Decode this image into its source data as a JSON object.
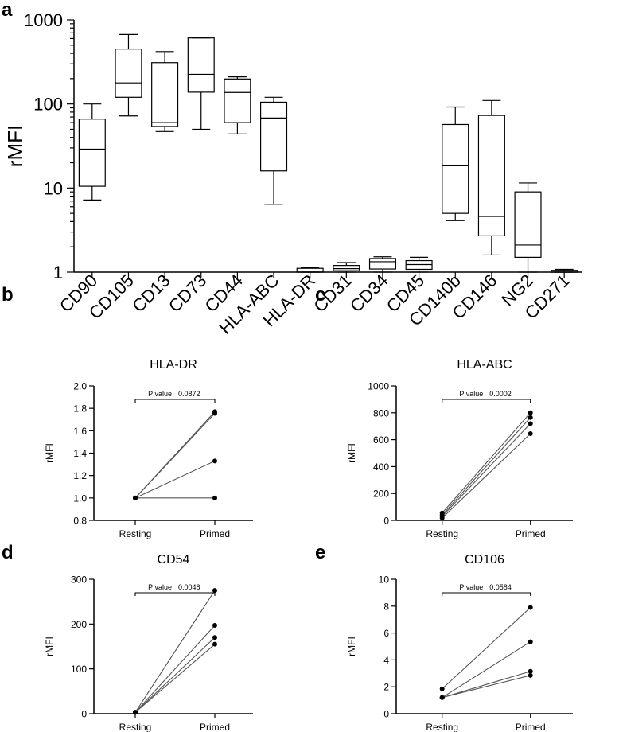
{
  "panel_letters": {
    "a": "a",
    "b": "b",
    "c": "c",
    "d": "d",
    "e": "e"
  },
  "chart_data": [
    {
      "id": "a",
      "type": "box",
      "title": "",
      "ylabel": "rMFI",
      "yscale": "log",
      "ylim": [
        1,
        1000
      ],
      "yticks": [
        1,
        10,
        100,
        1000
      ],
      "ytick_labels": [
        "1",
        "10",
        "100",
        "1000"
      ],
      "categories": [
        "CD90",
        "CD105",
        "CD13",
        "CD73",
        "CD44",
        "HLA-ABC",
        "HLA-DR",
        "CD31",
        "CD34",
        "CD45",
        "CD140b",
        "CD146",
        "NG2",
        "CD271"
      ],
      "boxes": [
        {
          "min": 7.2,
          "q1": 10.5,
          "median": 29,
          "q3": 66,
          "max": 100
        },
        {
          "min": 72,
          "q1": 120,
          "median": 178,
          "q3": 450,
          "max": 670
        },
        {
          "min": 47,
          "q1": 54,
          "median": 60,
          "q3": 310,
          "max": 420
        },
        {
          "min": 50,
          "q1": 138,
          "median": 225,
          "q3": 610,
          "max": 610
        },
        {
          "min": 44,
          "q1": 60,
          "median": 137,
          "q3": 198,
          "max": 210
        },
        {
          "min": 6.4,
          "q1": 16,
          "median": 68,
          "q3": 105,
          "max": 120
        },
        {
          "min": 1.0,
          "q1": 1.0,
          "median": 1.0,
          "q3": 1.11,
          "max": 1.13
        },
        {
          "min": 1.0,
          "q1": 1.04,
          "median": 1.1,
          "q3": 1.2,
          "max": 1.3
        },
        {
          "min": 1.0,
          "q1": 1.09,
          "median": 1.33,
          "q3": 1.45,
          "max": 1.52
        },
        {
          "min": 1.0,
          "q1": 1.08,
          "median": 1.23,
          "q3": 1.37,
          "max": 1.5
        },
        {
          "min": 4.1,
          "q1": 5.0,
          "median": 18.4,
          "q3": 57,
          "max": 92
        },
        {
          "min": 1.6,
          "q1": 2.7,
          "median": 4.6,
          "q3": 73,
          "max": 110
        },
        {
          "min": 1.0,
          "q1": 1.5,
          "median": 2.1,
          "q3": 9,
          "max": 11.5
        },
        {
          "min": 1.0,
          "q1": 1.0,
          "median": 1.0,
          "q3": 1.05,
          "max": 1.08
        }
      ]
    },
    {
      "id": "b",
      "type": "paired-line",
      "title": "HLA-DR",
      "ylabel": "rMFI",
      "ylim": [
        0.8,
        2.0
      ],
      "yticks": [
        0.8,
        1.0,
        1.2,
        1.4,
        1.6,
        1.8,
        2.0
      ],
      "ytick_labels": [
        "0.8",
        "1.0",
        "1.2",
        "1.4",
        "1.6",
        "1.8",
        "2.0"
      ],
      "categories": [
        "Resting",
        "Primed"
      ],
      "pairs": [
        [
          1.0,
          1.77
        ],
        [
          1.0,
          1.755
        ],
        [
          1.0,
          1.33
        ],
        [
          1.0,
          1.0
        ]
      ],
      "pvalue_label": "P value",
      "pvalue": "0.0872"
    },
    {
      "id": "c",
      "type": "paired-line",
      "title": "HLA-ABC",
      "ylabel": "rMFI",
      "ylim": [
        0,
        1000
      ],
      "yticks": [
        0,
        200,
        400,
        600,
        800,
        1000
      ],
      "ytick_labels": [
        "0",
        "200",
        "400",
        "600",
        "800",
        "1000"
      ],
      "categories": [
        "Resting",
        "Primed"
      ],
      "pairs": [
        [
          55,
          800
        ],
        [
          40,
          765
        ],
        [
          30,
          720
        ],
        [
          18,
          645
        ]
      ],
      "pvalue_label": "P value",
      "pvalue": "0.0002"
    },
    {
      "id": "d",
      "type": "paired-line",
      "title": "CD54",
      "ylabel": "rMFI",
      "ylim": [
        0,
        300
      ],
      "yticks": [
        0,
        100,
        200,
        300
      ],
      "ytick_labels": [
        "0",
        "100",
        "200",
        "300"
      ],
      "categories": [
        "Resting",
        "Primed"
      ],
      "pairs": [
        [
          3,
          275
        ],
        [
          3,
          197
        ],
        [
          3,
          170
        ],
        [
          3,
          155
        ]
      ],
      "pvalue_label": "P value",
      "pvalue": "0.0048"
    },
    {
      "id": "e",
      "type": "paired-line",
      "title": "CD106",
      "ylabel": "rMFI",
      "ylim": [
        0,
        10
      ],
      "yticks": [
        0,
        2,
        4,
        6,
        8,
        10
      ],
      "ytick_labels": [
        "0",
        "2",
        "4",
        "6",
        "8",
        "10"
      ],
      "categories": [
        "Resting",
        "Primed"
      ],
      "pairs": [
        [
          1.85,
          7.9
        ],
        [
          1.2,
          5.35
        ],
        [
          1.2,
          3.15
        ],
        [
          1.2,
          2.85
        ]
      ],
      "pvalue_label": "P value",
      "pvalue": "0.0584"
    }
  ]
}
